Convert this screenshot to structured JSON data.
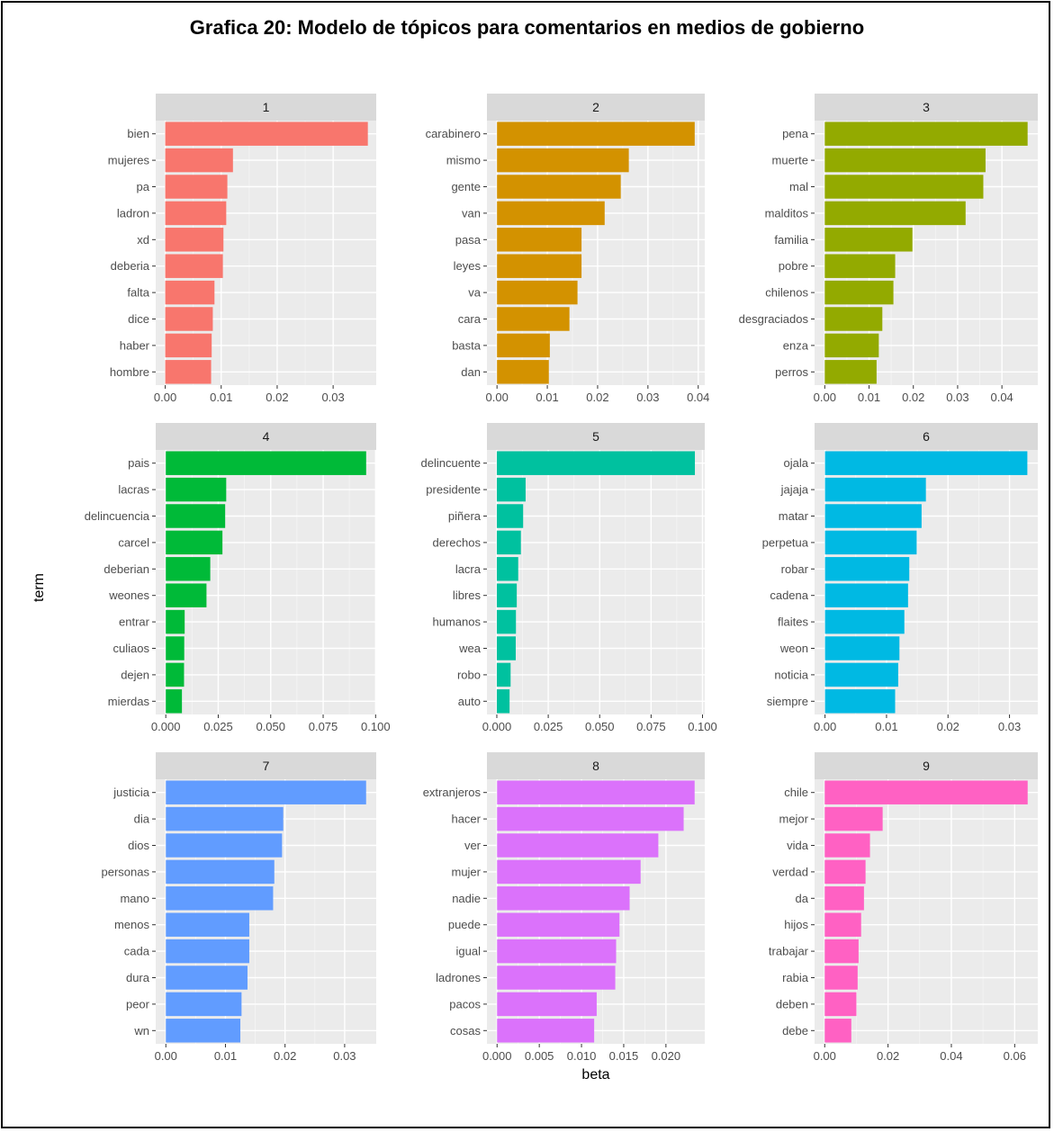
{
  "figure": {
    "title": "Grafica 20: Modelo de tópicos para comentarios en medios de gobierno"
  },
  "chart_data": {
    "type": "bar",
    "orientation": "horizontal",
    "facet": "topic",
    "xlabel": "beta",
    "ylabel": "term",
    "grid": true,
    "panels": [
      {
        "label": "1",
        "color": "#F8766D",
        "terms": [
          "bien",
          "mujeres",
          "pa",
          "ladron",
          "xd",
          "deberia",
          "falta",
          "dice",
          "haber",
          "hombre"
        ],
        "values": [
          0.0362,
          0.0121,
          0.0111,
          0.0109,
          0.0104,
          0.0103,
          0.0088,
          0.0085,
          0.0083,
          0.0082
        ],
        "xlim": [
          -0.0017,
          0.0377
        ],
        "ticks": [
          0,
          0.01,
          0.02,
          0.03
        ],
        "tick_labels": [
          "0.00",
          "0.01",
          "0.02",
          "0.03"
        ]
      },
      {
        "label": "2",
        "color": "#D39200",
        "terms": [
          "carabinero",
          "mismo",
          "gente",
          "van",
          "pasa",
          "leyes",
          "va",
          "cara",
          "basta",
          "dan"
        ],
        "values": [
          0.0393,
          0.0262,
          0.0246,
          0.0214,
          0.0168,
          0.0168,
          0.016,
          0.0144,
          0.0105,
          0.0103
        ],
        "xlim": [
          -0.002,
          0.0413
        ],
        "ticks": [
          0,
          0.01,
          0.02,
          0.03,
          0.04
        ],
        "tick_labels": [
          "0.00",
          "0.01",
          "0.02",
          "0.03",
          "0.04"
        ]
      },
      {
        "label": "3",
        "color": "#93AA00",
        "terms": [
          "pena",
          "muerte",
          "mal",
          "malditos",
          "familia",
          "pobre",
          "chilenos",
          "desgraciados",
          "enza",
          "perros"
        ],
        "values": [
          0.0458,
          0.0363,
          0.0358,
          0.0318,
          0.0198,
          0.0159,
          0.0155,
          0.013,
          0.0122,
          0.0117
        ],
        "xlim": [
          -0.0023,
          0.0481
        ],
        "ticks": [
          0,
          0.01,
          0.02,
          0.03,
          0.04
        ],
        "tick_labels": [
          "0.00",
          "0.01",
          "0.02",
          "0.03",
          "0.04"
        ]
      },
      {
        "label": "4",
        "color": "#00BA38",
        "terms": [
          "pais",
          "lacras",
          "delincuencia",
          "carcel",
          "deberian",
          "weones",
          "entrar",
          "culiaos",
          "dejen",
          "mierdas"
        ],
        "values": [
          0.0955,
          0.0288,
          0.0283,
          0.027,
          0.0212,
          0.0194,
          0.009,
          0.0088,
          0.0087,
          0.0077
        ],
        "xlim": [
          -0.0048,
          0.1003
        ],
        "ticks": [
          0,
          0.025,
          0.05,
          0.075,
          0.1
        ],
        "tick_labels": [
          "0.000",
          "0.025",
          "0.050",
          "0.075",
          "0.100"
        ]
      },
      {
        "label": "5",
        "color": "#00C19F",
        "terms": [
          "delincuente",
          "presidente",
          "piñera",
          "derechos",
          "lacra",
          "libres",
          "humanos",
          "wea",
          "robo",
          "auto"
        ],
        "values": [
          0.0963,
          0.014,
          0.0128,
          0.0117,
          0.0104,
          0.0097,
          0.0093,
          0.0092,
          0.0067,
          0.0062
        ],
        "xlim": [
          -0.0048,
          0.1011
        ],
        "ticks": [
          0,
          0.025,
          0.05,
          0.075,
          0.1
        ],
        "tick_labels": [
          "0.000",
          "0.025",
          "0.050",
          "0.075",
          "0.100"
        ]
      },
      {
        "label": "6",
        "color": "#00B9E3",
        "terms": [
          "ojala",
          "jajaja",
          "matar",
          "perpetua",
          "robar",
          "cadena",
          "flaites",
          "weon",
          "noticia",
          "siempre"
        ],
        "values": [
          0.0329,
          0.0164,
          0.0157,
          0.0149,
          0.0137,
          0.0135,
          0.0129,
          0.0121,
          0.0119,
          0.0114
        ],
        "xlim": [
          -0.0017,
          0.0346
        ],
        "ticks": [
          0,
          0.01,
          0.02,
          0.03
        ],
        "tick_labels": [
          "0.00",
          "0.01",
          "0.02",
          "0.03"
        ]
      },
      {
        "label": "7",
        "color": "#619CFF",
        "terms": [
          "justicia",
          "dia",
          "dios",
          "personas",
          "mano",
          "menos",
          "cada",
          "dura",
          "peor",
          "wn"
        ],
        "values": [
          0.0336,
          0.0197,
          0.0195,
          0.0182,
          0.018,
          0.014,
          0.014,
          0.0137,
          0.0127,
          0.0125
        ],
        "xlim": [
          -0.0017,
          0.0353
        ],
        "ticks": [
          0,
          0.01,
          0.02,
          0.03
        ],
        "tick_labels": [
          "0.00",
          "0.01",
          "0.02",
          "0.03"
        ]
      },
      {
        "label": "8",
        "color": "#DB72FB",
        "terms": [
          "extranjeros",
          "hacer",
          "ver",
          "mujer",
          "nadie",
          "puede",
          "igual",
          "ladrones",
          "pacos",
          "cosas"
        ],
        "values": [
          0.0234,
          0.0221,
          0.0191,
          0.017,
          0.0157,
          0.0145,
          0.0141,
          0.014,
          0.0118,
          0.0115
        ],
        "xlim": [
          -0.0012,
          0.0246
        ],
        "ticks": [
          0,
          0.005,
          0.01,
          0.015,
          0.02
        ],
        "tick_labels": [
          "0.000",
          "0.005",
          "0.010",
          "0.015",
          "0.020"
        ]
      },
      {
        "label": "9",
        "color": "#FF61C3",
        "terms": [
          "chile",
          "mejor",
          "vida",
          "verdad",
          "da",
          "hijos",
          "trabajar",
          "rabia",
          "deben",
          "debe"
        ],
        "values": [
          0.0641,
          0.0183,
          0.0143,
          0.0129,
          0.0124,
          0.0115,
          0.0107,
          0.0104,
          0.01,
          0.0084
        ],
        "xlim": [
          -0.0032,
          0.0673
        ],
        "ticks": [
          0,
          0.02,
          0.04,
          0.06
        ],
        "tick_labels": [
          "0.00",
          "0.02",
          "0.04",
          "0.06"
        ]
      }
    ]
  }
}
